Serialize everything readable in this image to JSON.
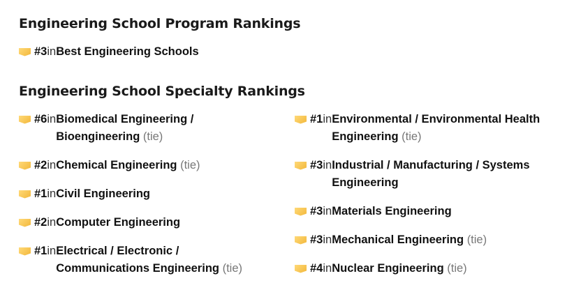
{
  "program": {
    "heading": "Engineering School Program Rankings",
    "items": [
      {
        "rank": "#3",
        "in": "in",
        "name": "Best Engineering Schools",
        "tie": ""
      }
    ]
  },
  "specialty": {
    "heading": "Engineering School Specialty Rankings",
    "left": [
      {
        "rank": "#6",
        "in": "in",
        "name": "Biomedical Engineering / Bioengineering",
        "tie": "(tie)"
      },
      {
        "rank": "#2",
        "in": "in",
        "name": "Chemical Engineering",
        "tie": "(tie)"
      },
      {
        "rank": "#1",
        "in": "in",
        "name": "Civil Engineering",
        "tie": ""
      },
      {
        "rank": "#2",
        "in": "in",
        "name": "Computer Engineering",
        "tie": ""
      },
      {
        "rank": "#1",
        "in": "in",
        "name": "Electrical / Electronic / Communications Engineering",
        "tie": "(tie)"
      }
    ],
    "right": [
      {
        "rank": "#1",
        "in": "in",
        "name": "Environmental / Environmental Health Engineering",
        "tie": "(tie)"
      },
      {
        "rank": "#3",
        "in": "in",
        "name": "Industrial / Manufacturing / Systems Engineering",
        "tie": ""
      },
      {
        "rank": "#3",
        "in": "in",
        "name": "Materials Engineering",
        "tie": ""
      },
      {
        "rank": "#3",
        "in": "in",
        "name": "Mechanical Engineering",
        "tie": "(tie)"
      },
      {
        "rank": "#4",
        "in": "in",
        "name": "Nuclear Engineering",
        "tie": "(tie)"
      }
    ]
  },
  "icon": "ribbon-badge-icon",
  "accent": "#f5c04a"
}
